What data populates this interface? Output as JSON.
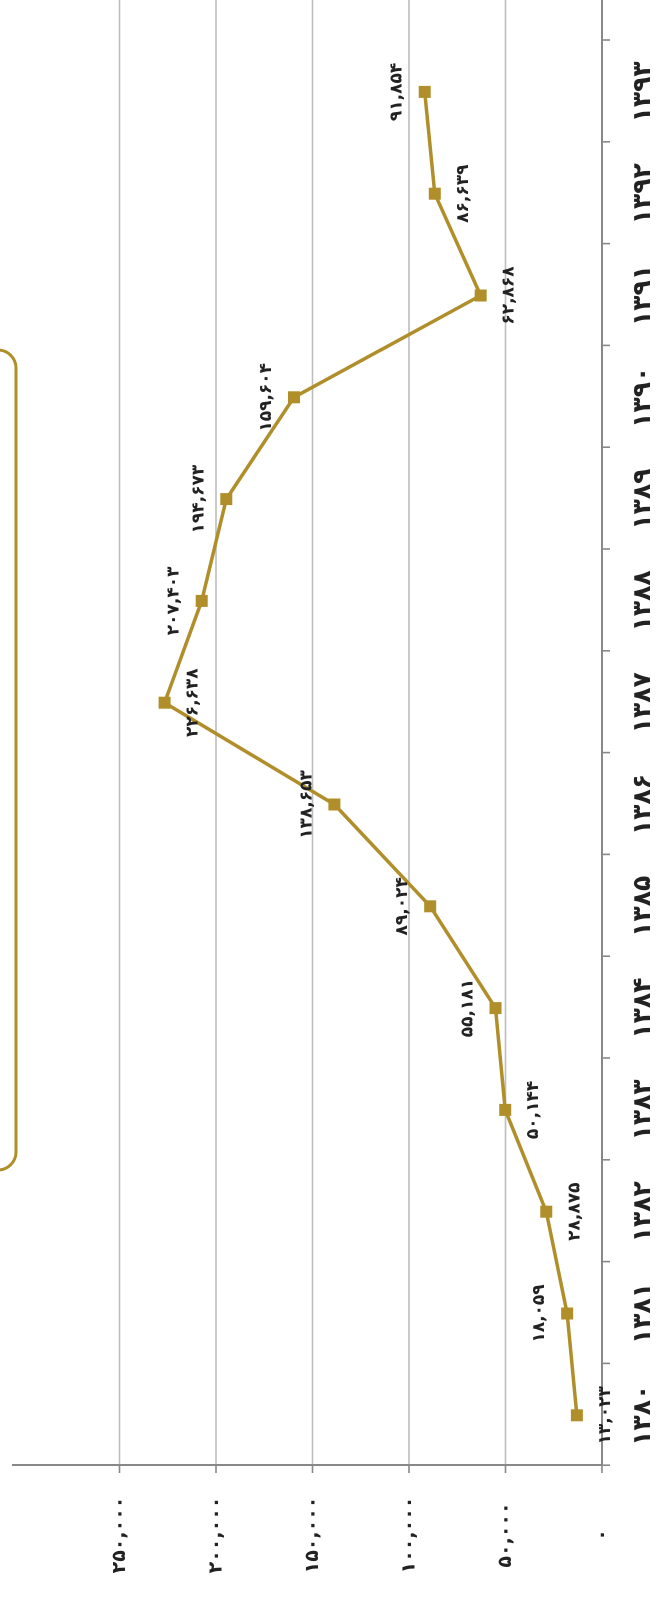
{
  "chart_data": {
    "type": "line",
    "orientation": "rotated-90",
    "categories": [
      "۱۳۸۰",
      "۱۳۸۱",
      "۱۳۸۲",
      "۱۳۸۳",
      "۱۳۸۴",
      "۱۳۸۵",
      "۱۳۸۶",
      "۱۳۸۷",
      "۱۳۸۸",
      "۱۳۸۹",
      "۱۳۹۰",
      "۱۳۹۱",
      "۱۳۹۲",
      "۱۳۹۳"
    ],
    "series": [
      {
        "values": [
          13023,
          18059,
          28875,
          50144,
          55181,
          89024,
          138653,
          226638,
          207403,
          194673,
          159604,
          62868,
          86639,
          91854
        ],
        "labels": [
          "۱۳,۰۲۳",
          "۱۸,۰۵۹",
          "۲۸,۸۷۵",
          "۵۰,۱۴۴",
          "۵۵,۱۸۱",
          "۸۹,۰۲۴",
          "۱۳۸,۶۵۳",
          "۲۲۶,۶۳۸",
          "۲۰۷,۴۰۳",
          "۱۹۴,۶۷۳",
          "۱۵۹,۶۰۴",
          "۶۲,۸۶۸",
          "۸۶,۶۳۹",
          "۹۱,۸۵۴"
        ]
      }
    ],
    "y_ticks": [
      "۰",
      "۵۰,۰۰۰",
      "۱۰۰,۰۰۰",
      "۱۵۰,۰۰۰",
      "۲۰۰,۰۰۰",
      "۲۵۰,۰۰۰"
    ],
    "y_tick_values": [
      0,
      50000,
      100000,
      150000,
      200000,
      250000
    ],
    "ylim": [
      0,
      250000
    ],
    "grid": true,
    "colors": {
      "line": "#B08E2A",
      "marker": "#B08E2A",
      "grid": "#BDBDBD",
      "axis": "#888888",
      "box_border": "#B08E2A"
    }
  }
}
